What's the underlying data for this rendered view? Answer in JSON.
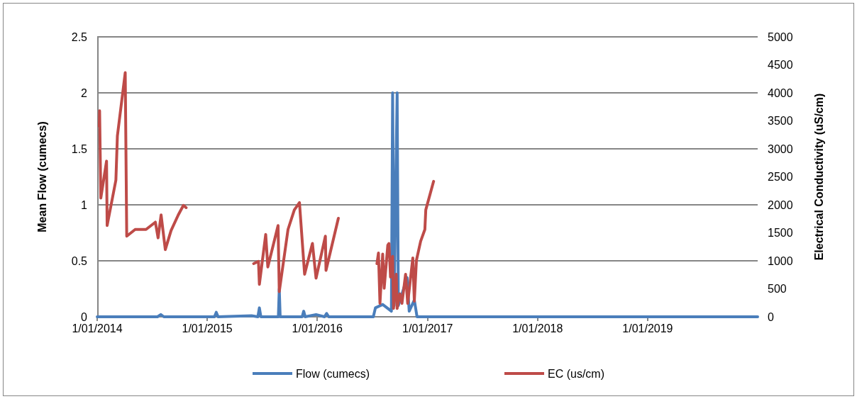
{
  "chart_data": {
    "type": "line",
    "ylabel": "Mean Flow (cumecs)",
    "y2label": "Electrical Conductivity (uS/cm)",
    "xlim": [
      "2014-01-01",
      "2020-01-01"
    ],
    "xticks": [
      {
        "value": "2014-01-01",
        "label": "1/01/2014"
      },
      {
        "value": "2015-01-01",
        "label": "1/01/2015"
      },
      {
        "value": "2016-01-01",
        "label": "1/01/2016"
      },
      {
        "value": "2017-01-01",
        "label": "1/01/2017"
      },
      {
        "value": "2018-01-01",
        "label": "1/01/2018"
      },
      {
        "value": "2019-01-01",
        "label": "1/01/2019"
      }
    ],
    "ylim": [
      0,
      2.5
    ],
    "yticks": [
      0,
      0.5,
      1,
      1.5,
      2,
      2.5
    ],
    "y2lim": [
      0,
      5000
    ],
    "y2ticks": [
      0,
      500,
      1000,
      1500,
      2000,
      2500,
      3000,
      3500,
      4000,
      4500,
      5000
    ],
    "grid": "y",
    "legend": "bottom",
    "marker": "none",
    "line_style": "solid",
    "series": [
      {
        "name": "Flow (cumecs)",
        "color": "#4a7ebb",
        "x": [
          "2014-01-01",
          "2014-07-20",
          "2014-07-31",
          "2014-08-10",
          "2015-01-25",
          "2015-01-31",
          "2015-02-06",
          "2015-05-28",
          "2015-06-18",
          "2015-06-23",
          "2015-06-28",
          "2015-08-25",
          "2015-08-28",
          "2015-08-31",
          "2015-11-12",
          "2015-11-17",
          "2015-11-22",
          "2015-12-28",
          "2016-01-25",
          "2016-02-01",
          "2016-02-08",
          "2016-07-05",
          "2016-07-12",
          "2016-08-05",
          "2016-09-03",
          "2016-09-07",
          "2016-09-12",
          "2016-09-22",
          "2016-09-26",
          "2016-10-25",
          "2016-11-01",
          "2016-11-18",
          "2016-11-27",
          "2020-01-01"
        ],
        "values": [
          0,
          0,
          0.02,
          0,
          0,
          0.04,
          0,
          0.01,
          0,
          0.08,
          0,
          0,
          0.25,
          0,
          0,
          0.05,
          0,
          0.02,
          0,
          0.03,
          0,
          0,
          0.08,
          0.11,
          0.05,
          2.0,
          0.1,
          2.0,
          0.1,
          0.35,
          0.05,
          0.15,
          0,
          0
        ]
      },
      {
        "name": "EC (us/cm)",
        "color": "#be4b48",
        "axis": "y2",
        "x": [
          "2014-01-08",
          "2014-01-09",
          "2014-01-13",
          "2014-02-01",
          "2014-02-03",
          "2014-03-04",
          "2014-03-09",
          "2014-04-04",
          "2014-04-09",
          "2014-05-07",
          "2014-06-12",
          "2014-07-13",
          "2014-07-22",
          "2014-08-01",
          "2014-08-15",
          "2014-09-03",
          "2014-09-27",
          "2014-10-14",
          "2014-10-23",
          "2015-03-01",
          "2015-06-04",
          "2015-06-20",
          "2015-06-23",
          "2015-07-14",
          "2015-07-21",
          "2015-08-24",
          "2015-08-28",
          "2015-09-26",
          "2015-10-17",
          "2015-11-03",
          "2015-11-20",
          "2015-12-16",
          "2015-12-28",
          "2016-01-28",
          "2016-01-30",
          "2016-03-11",
          "2016-05-01",
          "2016-07-17",
          "2016-07-22",
          "2016-07-27",
          "2016-08-05",
          "2016-08-10",
          "2016-08-22",
          "2016-08-26",
          "2016-08-31",
          "2016-09-07",
          "2016-09-10",
          "2016-09-19",
          "2016-09-22",
          "2016-10-01",
          "2016-10-08",
          "2016-10-20",
          "2016-10-27",
          "2016-11-13",
          "2016-11-18",
          "2016-11-25",
          "2016-12-09",
          "2016-12-23",
          "2016-12-26",
          "2017-01-21"
        ],
        "values": [
          3400,
          3680,
          2120,
          2780,
          1630,
          2440,
          3230,
          4360,
          1440,
          1560,
          1560,
          1690,
          1410,
          1820,
          1200,
          1540,
          1820,
          1990,
          1950,
          null,
          950,
          990,
          580,
          1470,
          890,
          1630,
          450,
          1560,
          1910,
          2040,
          760,
          1310,
          690,
          1440,
          830,
          1760,
          null,
          950,
          1140,
          240,
          1120,
          510,
          1280,
          1310,
          710,
          1080,
          150,
          760,
          150,
          410,
          240,
          760,
          240,
          1050,
          280,
          1010,
          1350,
          1560,
          1910,
          2420
        ]
      }
    ]
  }
}
